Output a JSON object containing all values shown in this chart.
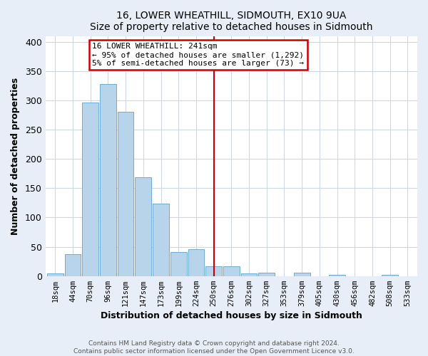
{
  "title": "16, LOWER WHEATHILL, SIDMOUTH, EX10 9UA",
  "subtitle": "Size of property relative to detached houses in Sidmouth",
  "xlabel": "Distribution of detached houses by size in Sidmouth",
  "ylabel": "Number of detached properties",
  "bar_labels": [
    "18sqm",
    "44sqm",
    "70sqm",
    "96sqm",
    "121sqm",
    "147sqm",
    "173sqm",
    "199sqm",
    "224sqm",
    "250sqm",
    "276sqm",
    "302sqm",
    "327sqm",
    "353sqm",
    "379sqm",
    "405sqm",
    "430sqm",
    "456sqm",
    "482sqm",
    "508sqm",
    "533sqm"
  ],
  "bar_heights": [
    5,
    37,
    296,
    328,
    280,
    169,
    124,
    41,
    46,
    17,
    17,
    5,
    6,
    0,
    6,
    0,
    2,
    0,
    0,
    2,
    0
  ],
  "bar_color": "#b8d4ea",
  "bar_edge_color": "#6aaed6",
  "vline_color": "#cc0000",
  "ylim": [
    0,
    410
  ],
  "yticks": [
    0,
    50,
    100,
    150,
    200,
    250,
    300,
    350,
    400
  ],
  "annotation_title": "16 LOWER WHEATHILL: 241sqm",
  "annotation_line1": "← 95% of detached houses are smaller (1,292)",
  "annotation_line2": "5% of semi-detached houses are larger (73) →",
  "footer1": "Contains HM Land Registry data © Crown copyright and database right 2024.",
  "footer2": "Contains public sector information licensed under the Open Government Licence v3.0.",
  "fig_background_color": "#e8eef8",
  "plot_background_color": "#ffffff",
  "grid_color": "#d0d8e8"
}
